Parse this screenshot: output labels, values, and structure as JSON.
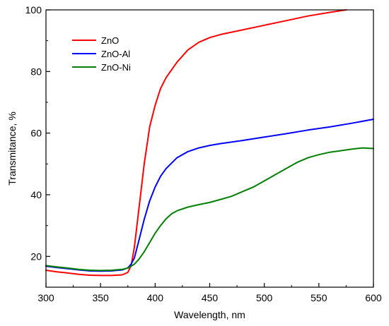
{
  "chart_data": {
    "type": "line",
    "xlabel": "Wavelength, nm",
    "ylabel": "Transmitance, %",
    "xlim": [
      300,
      600
    ],
    "ylim": [
      10,
      100
    ],
    "xticks": [
      300,
      350,
      400,
      450,
      500,
      550,
      600
    ],
    "yticks": [
      20,
      40,
      60,
      80,
      100
    ],
    "grid": false,
    "legend_position": "top-left",
    "series": [
      {
        "name": "ZnO",
        "color": "#ff0000",
        "x": [
          300,
          310,
          320,
          330,
          340,
          350,
          360,
          370,
          375,
          378,
          381,
          385,
          390,
          395,
          400,
          405,
          410,
          420,
          430,
          440,
          450,
          460,
          480,
          500,
          520,
          540,
          560,
          575
        ],
        "y": [
          15.5,
          15.0,
          14.6,
          14.2,
          13.9,
          13.8,
          13.8,
          14.0,
          14.8,
          17.0,
          23.0,
          35.0,
          50.0,
          62.0,
          69.0,
          74.5,
          78.0,
          83.0,
          87.0,
          89.5,
          91.0,
          92.0,
          93.5,
          95.0,
          96.5,
          98.0,
          99.2,
          100.0
        ]
      },
      {
        "name": "ZnO-Al",
        "color": "#0000ff",
        "x": [
          300,
          310,
          320,
          330,
          340,
          350,
          360,
          370,
          375,
          378,
          381,
          385,
          390,
          395,
          400,
          405,
          410,
          420,
          430,
          440,
          450,
          460,
          480,
          500,
          520,
          540,
          560,
          580,
          600
        ],
        "y": [
          16.8,
          16.4,
          16.0,
          15.6,
          15.3,
          15.2,
          15.3,
          15.6,
          16.3,
          17.5,
          19.5,
          25.0,
          32.0,
          38.0,
          42.5,
          46.0,
          48.5,
          52.0,
          54.0,
          55.2,
          56.0,
          56.6,
          57.6,
          58.7,
          59.8,
          61.0,
          62.0,
          63.2,
          64.5
        ]
      },
      {
        "name": "ZnO-Ni",
        "color": "#008000",
        "x": [
          300,
          310,
          320,
          330,
          340,
          350,
          360,
          370,
          375,
          378,
          381,
          385,
          390,
          395,
          400,
          405,
          410,
          415,
          420,
          430,
          440,
          450,
          460,
          470,
          480,
          490,
          500,
          510,
          520,
          530,
          540,
          550,
          560,
          570,
          580,
          590,
          600
        ],
        "y": [
          17.0,
          16.6,
          16.2,
          15.8,
          15.5,
          15.4,
          15.5,
          15.8,
          16.2,
          16.8,
          17.5,
          19.0,
          21.5,
          24.5,
          27.5,
          30.0,
          32.2,
          33.8,
          34.8,
          36.0,
          36.8,
          37.5,
          38.5,
          39.5,
          41.0,
          42.5,
          44.5,
          46.5,
          48.5,
          50.5,
          52.0,
          53.0,
          53.8,
          54.3,
          54.8,
          55.2,
          55.0
        ]
      }
    ]
  }
}
